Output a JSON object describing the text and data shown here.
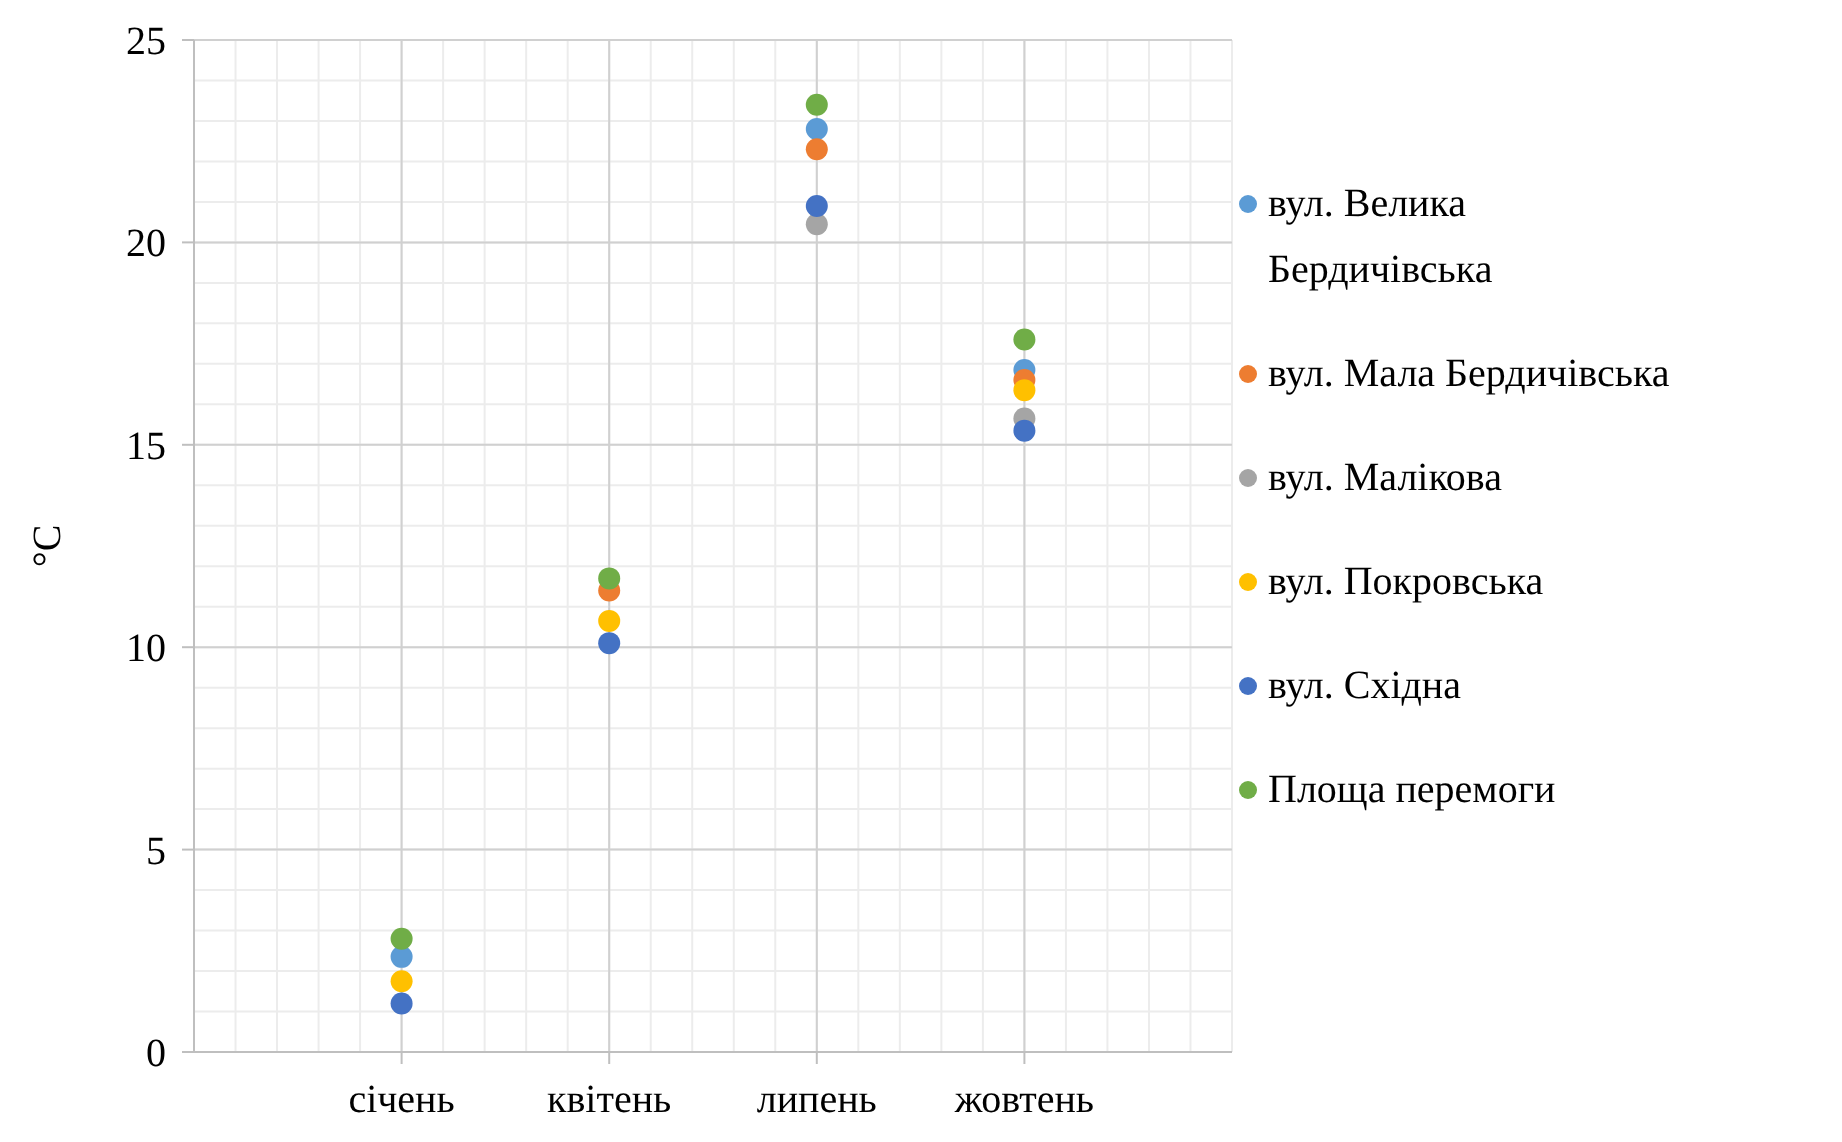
{
  "chart_data": {
    "type": "scatter",
    "ylabel": "°C",
    "categories": [
      "січень",
      "квітень",
      "липень",
      "жовтень"
    ],
    "ylim": [
      0,
      25
    ],
    "yticks": [
      0,
      5,
      10,
      15,
      20,
      25
    ],
    "grid": true,
    "legend": "right",
    "marker": "circle",
    "series": [
      {
        "name": "вул. Велика Бердичівська",
        "color": "#5b9bd5",
        "values": [
          2.35,
          null,
          22.8,
          16.85
        ]
      },
      {
        "name": "вул. Мала Бердичівська",
        "color": "#ed7d31",
        "values": [
          null,
          11.4,
          22.3,
          16.6
        ]
      },
      {
        "name": "вул. Малікова",
        "color": "#a5a5a5",
        "values": [
          null,
          null,
          20.45,
          15.65
        ]
      },
      {
        "name": "вул. Покровська",
        "color": "#ffc000",
        "values": [
          1.75,
          10.65,
          null,
          16.35
        ]
      },
      {
        "name": "вул. Східна",
        "color": "#4472c4",
        "values": [
          1.2,
          10.1,
          20.9,
          15.35
        ]
      },
      {
        "name": "Площа перемоги",
        "color": "#70ad47",
        "values": [
          2.8,
          11.7,
          23.4,
          17.6
        ]
      }
    ]
  }
}
